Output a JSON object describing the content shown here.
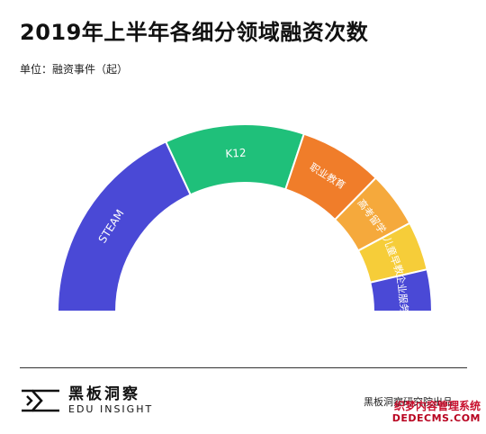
{
  "header": {
    "title": "2019年上半年各细分领域融资次数",
    "unit_label": "单位：融资事件（起）"
  },
  "chart_data": {
    "type": "pie",
    "shape": "half-donut",
    "title": "2019年上半年各细分领域融资次数",
    "categories": [
      "STEAM",
      "K12",
      "职业教育",
      "高考留学",
      "儿童早教",
      "企业服务"
    ],
    "values": [
      30,
      20,
      12,
      8,
      7,
      6
    ],
    "colors": [
      "#4a49d6",
      "#1fc07a",
      "#f07d2a",
      "#f5a93c",
      "#f6cd39",
      "#4a49d6"
    ],
    "legend": "none"
  },
  "footer": {
    "brand_cn": "黑板洞察",
    "brand_en": "EDU INSIGHT",
    "credit": "黑板洞察研究院出品",
    "watermark_line1": "织梦内容管理系统",
    "watermark_line2": "DEDECMS.COM"
  }
}
